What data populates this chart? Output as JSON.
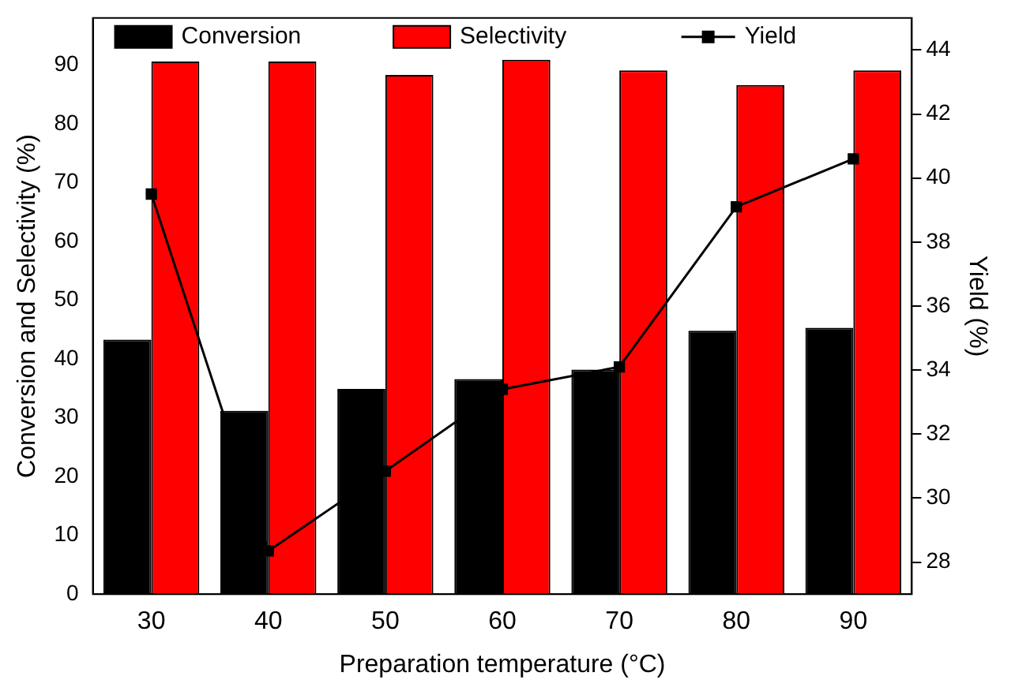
{
  "chart_data": {
    "type": "bar",
    "xlabel": "Preparation temperature (°C)",
    "ylabel": "Conversion and Selectivity (%)",
    "y2label": "Yield (%)",
    "categories": [
      "30",
      "40",
      "50",
      "60",
      "70",
      "80",
      "90"
    ],
    "series": [
      {
        "name": "Conversion",
        "color": "#000000",
        "values": [
          43.3,
          31.2,
          34.9,
          36.6,
          38.2,
          44.8,
          45.3
        ]
      },
      {
        "name": "Selectivity",
        "color": "#ff0000",
        "values": [
          90.6,
          90.6,
          88.3,
          90.9,
          89.1,
          86.6,
          89.1
        ]
      },
      {
        "name": "Yield",
        "type": "line",
        "axis": "y2",
        "color": "#000000",
        "marker": "square",
        "values": [
          39.5,
          28.35,
          30.84,
          33.4,
          34.1,
          39.1,
          40.6
        ]
      }
    ],
    "ylim": [
      0,
      98
    ],
    "yticks": [
      0,
      10,
      20,
      30,
      40,
      50,
      60,
      70,
      80,
      90
    ],
    "y2lim": [
      27,
      45
    ],
    "y2ticks": [
      28,
      30,
      32,
      34,
      36,
      38,
      40,
      42,
      44
    ],
    "legend": "top",
    "grid": false
  }
}
